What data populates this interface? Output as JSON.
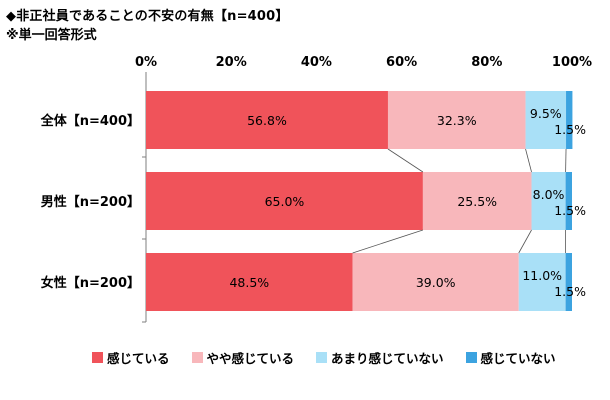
{
  "header": {
    "title": "◆非正社員であることの不安の有無【n=400】",
    "subtitle": "※単一回答形式"
  },
  "chart_data": {
    "type": "bar",
    "orientation": "horizontal",
    "stacked": true,
    "normalized": true,
    "categories": [
      "全体【n=400】",
      "男性【n=200】",
      "女性【n=200】"
    ],
    "series": [
      {
        "name": "感じている",
        "values": [
          56.8,
          65.0,
          48.5
        ],
        "color": "#f0535a"
      },
      {
        "name": "やや感じている",
        "values": [
          32.3,
          25.5,
          39.0
        ],
        "color": "#f8b7bb"
      },
      {
        "name": "あまり感じていない",
        "values": [
          9.5,
          8.0,
          11.0
        ],
        "color": "#a9e0f7"
      },
      {
        "name": "感じていない",
        "values": [
          1.5,
          1.5,
          1.5
        ],
        "color": "#3ca3e0"
      }
    ],
    "x_ticks": [
      "0%",
      "20%",
      "40%",
      "60%",
      "80%",
      "100%"
    ],
    "xlim": [
      0,
      100
    ],
    "value_suffix": "%",
    "legend_position": "bottom",
    "grid": false
  }
}
